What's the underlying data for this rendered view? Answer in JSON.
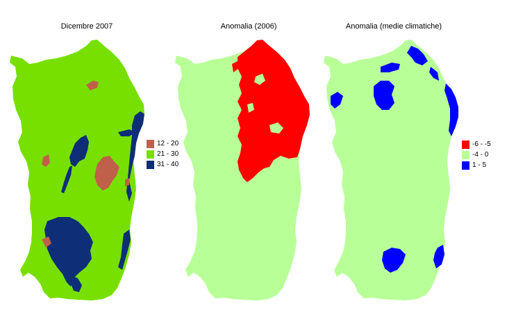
{
  "panels": [
    {
      "title": "Dicembre 2007"
    },
    {
      "title": "Anomalia (2006)"
    },
    {
      "title": "Anomalia (medie climatiche)"
    }
  ],
  "legend_dicembre": [
    {
      "label": "12 - 20",
      "color": "#c0604a"
    },
    {
      "label": "21 - 30",
      "color": "#77e000"
    },
    {
      "label": "31 - 40",
      "color": "#0e2e78"
    }
  ],
  "legend_anomalia": [
    {
      "label": "-6 - -5",
      "color": "#ff0000"
    },
    {
      "label": "-4 - 0",
      "color": "#b8ff98"
    },
    {
      "label": "1 - 5",
      "color": "#0000ff"
    }
  ]
}
